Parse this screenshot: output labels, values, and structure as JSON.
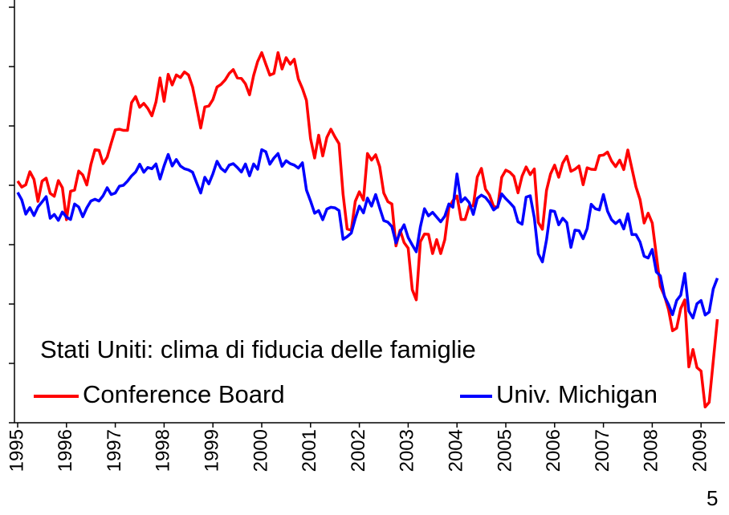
{
  "chart_data": {
    "type": "line",
    "annotation": "Stati Uniti: clima di fiducia delle famiglie",
    "categories": [
      "1995",
      null,
      null,
      null,
      null,
      null,
      null,
      null,
      null,
      null,
      null,
      null,
      "1996",
      null,
      null,
      null,
      null,
      null,
      null,
      null,
      null,
      null,
      null,
      null,
      "1997",
      null,
      null,
      null,
      null,
      null,
      null,
      null,
      null,
      null,
      null,
      null,
      "1998",
      null,
      null,
      null,
      null,
      null,
      null,
      null,
      null,
      null,
      null,
      null,
      "1999",
      null,
      null,
      null,
      null,
      null,
      null,
      null,
      null,
      null,
      null,
      null,
      "2000",
      null,
      null,
      null,
      null,
      null,
      null,
      null,
      null,
      null,
      null,
      null,
      "2001",
      null,
      null,
      null,
      null,
      null,
      null,
      null,
      null,
      null,
      null,
      null,
      "2002",
      null,
      null,
      null,
      null,
      null,
      null,
      null,
      null,
      null,
      null,
      null,
      "2003",
      null,
      null,
      null,
      null,
      null,
      null,
      null,
      null,
      null,
      null,
      null,
      "2004",
      null,
      null,
      null,
      null,
      null,
      null,
      null,
      null,
      null,
      null,
      null,
      "2005",
      null,
      null,
      null,
      null,
      null,
      null,
      null,
      null,
      null,
      null,
      null,
      "2006",
      null,
      null,
      null,
      null,
      null,
      null,
      null,
      null,
      null,
      null,
      null,
      "2007",
      null,
      null,
      null,
      null,
      null,
      null,
      null,
      null,
      null,
      null,
      null,
      "2008",
      null,
      null,
      null,
      null,
      null,
      null,
      null,
      null,
      null,
      null,
      null,
      "2009",
      null,
      null,
      null,
      null
    ],
    "series": [
      {
        "name": "Conference Board",
        "color": "#ff0000",
        "values": [
          101.4,
          99.4,
          100.2,
          104.6,
          102.0,
          94.6,
          101.4,
          102.4,
          97.3,
          96.3,
          101.6,
          99.2,
          88.4,
          98.0,
          98.4,
          104.8,
          103.5,
          100.1,
          107.0,
          112.0,
          111.8,
          107.3,
          109.5,
          114.2,
          118.7,
          118.9,
          118.5,
          118.5,
          127.9,
          129.9,
          126.3,
          127.6,
          125.9,
          123.4,
          128.1,
          136.2,
          128.3,
          137.4,
          133.8,
          137.2,
          136.3,
          138.2,
          137.2,
          133.1,
          126.4,
          119.3,
          126.4,
          126.7,
          128.9,
          133.1,
          134.0,
          135.5,
          137.7,
          139.0,
          136.2,
          136.0,
          134.2,
          130.5,
          137.0,
          141.7,
          144.7,
          140.8,
          137.1,
          137.7,
          144.7,
          139.2,
          143.0,
          140.8,
          142.5,
          135.8,
          132.6,
          128.6,
          115.7,
          109.2,
          116.9,
          109.9,
          116.1,
          118.9,
          116.3,
          114.0,
          97.0,
          85.3,
          84.9,
          94.6,
          97.8,
          95.0,
          110.7,
          108.5,
          110.3,
          106.3,
          97.4,
          94.5,
          93.7,
          79.6,
          84.9,
          80.7,
          78.8,
          64.8,
          61.4,
          81.0,
          83.6,
          83.5,
          77.0,
          81.7,
          77.0,
          81.7,
          92.5,
          94.8,
          96.4,
          88.5,
          88.5,
          93.0,
          93.1,
          102.8,
          105.7,
          98.7,
          96.7,
          92.9,
          92.6,
          102.7,
          105.1,
          104.4,
          103.0,
          97.5,
          103.1,
          106.2,
          103.6,
          105.5,
          87.5,
          85.2,
          98.3,
          103.8,
          106.8,
          102.7,
          107.5,
          109.8,
          104.7,
          105.4,
          106.5,
          100.2,
          105.9,
          105.4,
          105.3,
          110.0,
          110.2,
          111.2,
          108.2,
          106.3,
          108.5,
          105.3,
          111.9,
          105.6,
          99.5,
          95.2,
          87.3,
          90.6,
          87.3,
          76.4,
          65.9,
          62.8,
          58.1,
          51.0,
          51.9,
          58.5,
          61.4,
          38.8,
          44.7,
          38.6,
          37.4,
          25.3,
          26.9,
          40.8,
          54.9
        ]
      },
      {
        "name": "Univ. Michigan",
        "color": "#0000ff",
        "values": [
          97.6,
          95.1,
          90.3,
          92.5,
          89.8,
          92.7,
          94.4,
          96.2,
          88.9,
          90.2,
          88.2,
          91.0,
          89.3,
          88.5,
          93.7,
          92.7,
          89.4,
          92.4,
          94.7,
          95.3,
          94.7,
          96.5,
          99.2,
          96.9,
          97.4,
          99.7,
          100.0,
          101.4,
          103.2,
          104.5,
          107.1,
          104.4,
          106.0,
          105.6,
          107.2,
          102.1,
          106.6,
          110.4,
          106.5,
          108.7,
          106.5,
          105.6,
          105.2,
          104.4,
          100.9,
          97.4,
          102.7,
          100.5,
          103.9,
          108.1,
          105.7,
          104.6,
          106.8,
          107.3,
          106.0,
          104.5,
          107.2,
          103.2,
          107.2,
          105.4,
          112.0,
          111.3,
          107.1,
          109.2,
          110.7,
          106.4,
          108.3,
          107.3,
          106.8,
          105.8,
          107.6,
          98.4,
          94.7,
          90.6,
          91.5,
          88.4,
          92.0,
          92.6,
          92.4,
          91.5,
          81.8,
          82.7,
          83.9,
          88.8,
          93.0,
          90.7,
          95.7,
          93.0,
          96.9,
          92.4,
          88.1,
          87.6,
          86.1,
          80.6,
          84.2,
          86.7,
          82.4,
          79.9,
          77.6,
          86.0,
          92.1,
          89.7,
          90.9,
          89.3,
          87.7,
          89.6,
          93.7,
          92.6,
          103.8,
          94.4,
          95.8,
          94.2,
          90.2,
          95.6,
          96.7,
          95.9,
          94.2,
          91.7,
          92.8,
          97.1,
          95.5,
          94.1,
          92.6,
          87.7,
          86.9,
          96.0,
          96.5,
          89.1,
          76.9,
          74.2,
          81.6,
          91.5,
          91.2,
          86.7,
          88.9,
          87.4,
          79.1,
          84.9,
          84.7,
          82.0,
          85.4,
          93.6,
          92.1,
          91.7,
          96.9,
          91.3,
          88.4,
          87.1,
          88.3,
          85.3,
          90.4,
          83.4,
          83.4,
          80.9,
          76.1,
          75.5,
          78.4,
          70.8,
          69.5,
          62.6,
          59.8,
          56.4,
          61.2,
          63.0,
          70.3,
          57.6,
          55.3,
          60.1,
          61.2,
          56.3,
          57.3,
          65.1,
          68.7
        ]
      }
    ],
    "ylim": [
      20,
      160
    ],
    "yticks": [
      20,
      40,
      60,
      80,
      100,
      120,
      140,
      160
    ]
  },
  "slide_number": "5"
}
